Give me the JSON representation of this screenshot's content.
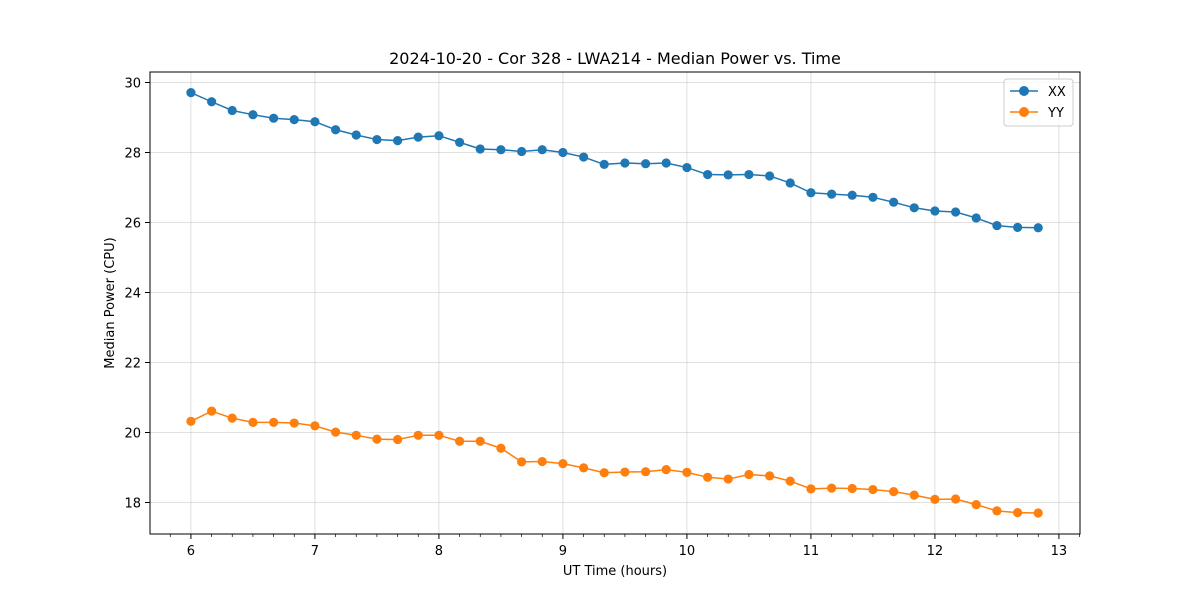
{
  "chart_data": {
    "type": "line",
    "title": "2024-10-20 - Cor 328 - LWA214 - Median Power vs. Time",
    "xlabel": "UT Time (hours)",
    "ylabel": "Median Power (CPU)",
    "xlim": [
      5.67,
      13.17
    ],
    "ylim": [
      17.1,
      30.3
    ],
    "xticks": [
      6,
      7,
      8,
      9,
      10,
      11,
      12,
      13
    ],
    "yticks": [
      18,
      20,
      22,
      24,
      26,
      28,
      30
    ],
    "grid": true,
    "legend_position": "top-right",
    "x": [
      6.0,
      6.167,
      6.333,
      6.5,
      6.667,
      6.833,
      7.0,
      7.167,
      7.333,
      7.5,
      7.667,
      7.833,
      8.0,
      8.167,
      8.333,
      8.5,
      8.667,
      8.833,
      9.0,
      9.167,
      9.333,
      9.5,
      9.667,
      9.833,
      10.0,
      10.167,
      10.333,
      10.5,
      10.667,
      10.833,
      11.0,
      11.167,
      11.333,
      11.5,
      11.667,
      11.833,
      12.0,
      12.167,
      12.333,
      12.5,
      12.667,
      12.833
    ],
    "series": [
      {
        "name": "XX",
        "color": "#1f77b4",
        "values": [
          29.71,
          29.45,
          29.2,
          29.08,
          28.98,
          28.94,
          28.88,
          28.65,
          28.5,
          28.37,
          28.34,
          28.44,
          28.48,
          28.29,
          28.1,
          28.08,
          28.03,
          28.08,
          28.0,
          27.87,
          27.66,
          27.7,
          27.68,
          27.7,
          27.57,
          27.37,
          27.36,
          27.37,
          27.33,
          27.13,
          26.85,
          26.81,
          26.78,
          26.72,
          26.58,
          26.42,
          26.33,
          26.3,
          26.13,
          25.91,
          25.86,
          25.85
        ]
      },
      {
        "name": "YY",
        "color": "#ff7f0e",
        "values": [
          20.32,
          20.61,
          20.41,
          20.29,
          20.29,
          20.27,
          20.19,
          20.01,
          19.92,
          19.81,
          19.8,
          19.92,
          19.92,
          19.75,
          19.75,
          19.55,
          19.16,
          19.17,
          19.11,
          18.99,
          18.85,
          18.87,
          18.88,
          18.94,
          18.86,
          18.72,
          18.67,
          18.8,
          18.76,
          18.61,
          18.39,
          18.41,
          18.4,
          18.37,
          18.31,
          18.21,
          18.09,
          18.1,
          17.94,
          17.76,
          17.71,
          17.7
        ]
      }
    ]
  }
}
